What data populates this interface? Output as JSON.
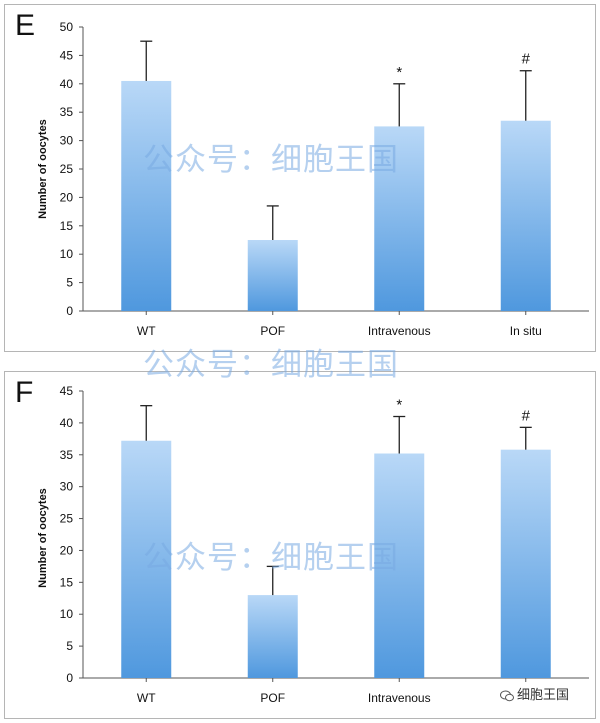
{
  "panels": [
    {
      "letter": "E"
    },
    {
      "letter": "F"
    }
  ],
  "watermark": "公众号：细胞王国",
  "corner_mark": "细胞王国",
  "colors": {
    "bar_top": "#b9d8f7",
    "bar_bottom": "#4f98de",
    "axis": "#555555"
  },
  "chart_data": [
    {
      "type": "bar",
      "categories": [
        "WT",
        "POF",
        "Intravenous",
        "In situ"
      ],
      "values": [
        40.5,
        12.5,
        32.5,
        33.5
      ],
      "errors": [
        7,
        6,
        7.5,
        8.8
      ],
      "annotations": [
        "",
        "",
        "*",
        "#"
      ],
      "ylabel": "Number of oocytes",
      "ylim": [
        0,
        50
      ],
      "yticks": [
        0,
        5,
        10,
        15,
        20,
        25,
        30,
        35,
        40,
        45,
        50
      ]
    },
    {
      "type": "bar",
      "categories": [
        "WT",
        "POF",
        "Intravenous",
        ""
      ],
      "values": [
        37.2,
        13,
        35.2,
        35.8
      ],
      "errors": [
        5.5,
        4.5,
        5.8,
        3.5
      ],
      "annotations": [
        "",
        "",
        "*",
        "#"
      ],
      "ylabel": "Number of oocytes",
      "ylim": [
        0,
        45
      ],
      "yticks": [
        0,
        5,
        10,
        15,
        20,
        25,
        30,
        35,
        40,
        45
      ]
    }
  ]
}
